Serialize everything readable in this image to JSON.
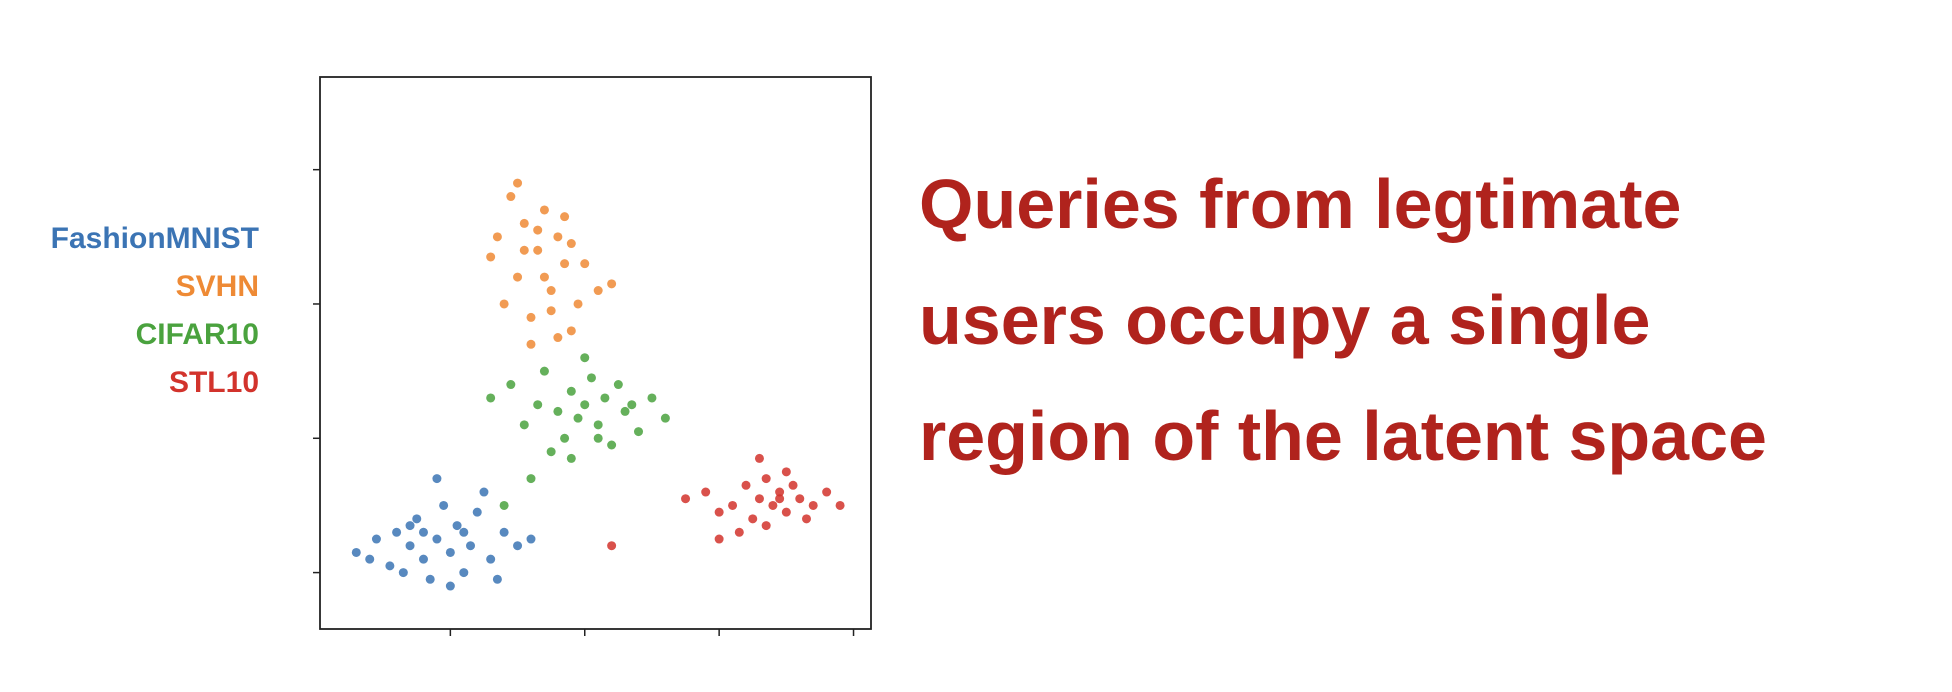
{
  "chart_data": {
    "type": "scatter",
    "annotation": [
      "Queries from legtimate",
      "users occupy a single",
      "region of the latent space"
    ],
    "annotation_color": "#b0231d",
    "legend": "left",
    "tick_labels": false,
    "xlim": [
      -0.97,
      3.13
    ],
    "ylim": [
      -0.42,
      3.69
    ],
    "xticks": [
      0,
      1,
      2,
      3
    ],
    "yticks": [
      0,
      1,
      2,
      3
    ],
    "series": [
      {
        "name": "FashionMNIST",
        "color": "#3b74b4",
        "x": [
          -0.7,
          -0.55,
          -0.45,
          -0.4,
          -0.3,
          -0.25,
          -0.2,
          -0.15,
          -0.1,
          -0.05,
          0,
          0.05,
          0.1,
          0.15,
          0.2,
          0.3,
          0.4,
          0.5,
          -0.35,
          -0.2,
          0.0,
          0.25,
          -0.6,
          0.35,
          0.6,
          -0.1,
          0.1,
          -0.3
        ],
        "values": [
          0.15,
          0.25,
          0.05,
          0.3,
          0.2,
          0.4,
          0.1,
          -0.05,
          0.25,
          0.5,
          0.15,
          0.35,
          0.0,
          0.2,
          0.45,
          0.1,
          0.3,
          0.2,
          0.0,
          0.3,
          -0.1,
          0.6,
          0.1,
          -0.05,
          0.25,
          0.7,
          0.3,
          0.35
        ]
      },
      {
        "name": "SVHN",
        "color": "#ee8a35",
        "x": [
          0.35,
          0.45,
          0.5,
          0.55,
          0.6,
          0.65,
          0.7,
          0.75,
          0.8,
          0.85,
          0.9,
          1.0,
          1.1,
          0.4,
          0.55,
          0.7,
          0.85,
          0.6,
          0.75,
          0.95,
          0.5,
          0.65,
          0.8,
          0.3,
          1.2,
          0.9
        ],
        "values": [
          2.5,
          2.8,
          2.2,
          2.6,
          1.9,
          2.4,
          2.7,
          2.1,
          2.5,
          2.3,
          1.8,
          2.3,
          2.1,
          2.0,
          2.4,
          2.2,
          2.65,
          1.7,
          1.95,
          2.0,
          2.9,
          2.55,
          1.75,
          2.35,
          2.15,
          2.45
        ]
      },
      {
        "name": "CIFAR10",
        "color": "#4aa23e",
        "x": [
          0.3,
          0.45,
          0.55,
          0.65,
          0.7,
          0.8,
          0.85,
          0.9,
          0.95,
          1.0,
          1.05,
          1.1,
          1.15,
          1.2,
          1.3,
          1.4,
          1.5,
          1.6,
          0.75,
          1.0,
          1.25,
          0.9,
          1.1,
          0.6,
          0.4,
          1.35
        ],
        "values": [
          1.3,
          1.4,
          1.1,
          1.25,
          1.5,
          1.2,
          1.0,
          1.35,
          1.15,
          1.25,
          1.45,
          1.1,
          1.3,
          0.95,
          1.2,
          1.05,
          1.3,
          1.15,
          0.9,
          1.6,
          1.4,
          0.85,
          1.0,
          0.7,
          0.5,
          1.25
        ]
      },
      {
        "name": "STL10",
        "color": "#d2332c",
        "x": [
          1.75,
          1.9,
          2.0,
          2.1,
          2.2,
          2.25,
          2.3,
          2.35,
          2.4,
          2.45,
          2.5,
          2.55,
          2.6,
          2.7,
          2.8,
          2.9,
          2.15,
          2.35,
          2.5,
          2.65,
          1.2,
          2.0,
          2.3,
          2.45
        ],
        "values": [
          0.55,
          0.6,
          0.45,
          0.5,
          0.65,
          0.4,
          0.55,
          0.7,
          0.5,
          0.6,
          0.45,
          0.65,
          0.55,
          0.5,
          0.6,
          0.5,
          0.3,
          0.35,
          0.75,
          0.4,
          0.2,
          0.25,
          0.85,
          0.55
        ]
      }
    ]
  }
}
